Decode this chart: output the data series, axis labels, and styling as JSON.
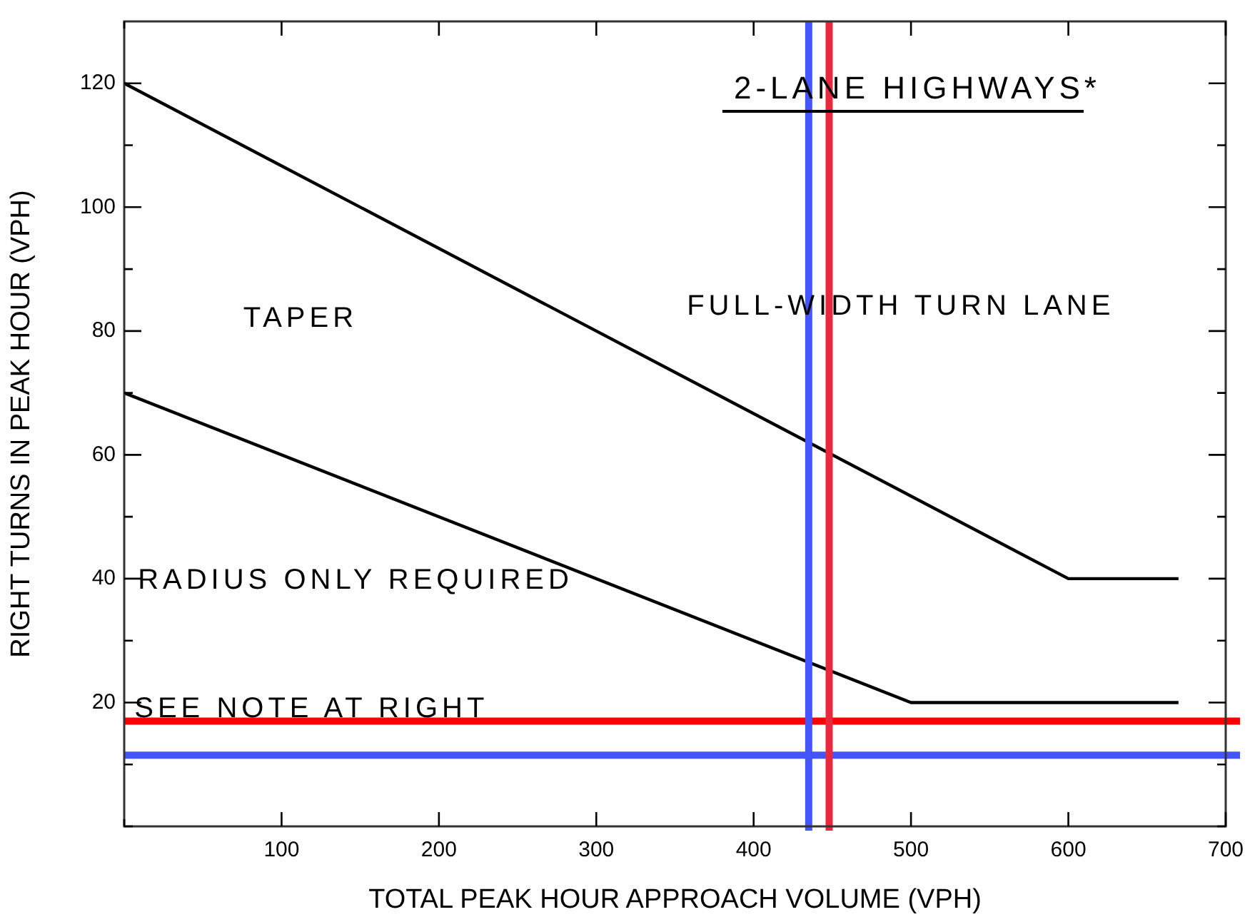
{
  "chart_data": {
    "type": "line",
    "title": "2-LANE HIGHWAYS*",
    "xlabel": "TOTAL PEAK HOUR APPROACH VOLUME (VPH)",
    "ylabel": "RIGHT TURNS IN PEAK HOUR (VPH)",
    "xlim": [
      0,
      700
    ],
    "ylim": [
      0,
      130
    ],
    "xticks": [
      {
        "value": 0,
        "label": null
      },
      100,
      200,
      300,
      400,
      500,
      600,
      700
    ],
    "yticks": [
      {
        "value": 0,
        "label": null
      },
      {
        "value": 10,
        "label": null
      },
      20,
      {
        "value": 30,
        "label": null
      },
      40,
      {
        "value": 50,
        "label": null
      },
      60,
      {
        "value": 70,
        "label": null
      },
      80,
      {
        "value": 90,
        "label": null
      },
      100,
      {
        "value": 110,
        "label": null
      },
      120
    ],
    "marker": "none",
    "legend": false,
    "series": [
      {
        "color": "#000000",
        "x": [
          0,
          600,
          670
        ],
        "values": [
          120,
          40,
          40
        ]
      },
      {
        "color": "#000000",
        "x": [
          0,
          500,
          670
        ],
        "values": [
          70,
          20,
          20
        ]
      }
    ],
    "ref_lines": [
      {
        "axis": "y",
        "value": 17,
        "color": "#ff0000"
      },
      {
        "axis": "y",
        "value": 11.5,
        "color": "#4455ff"
      },
      {
        "axis": "x",
        "value": 435,
        "color": "#4455ff"
      },
      {
        "axis": "x",
        "value": 448,
        "color": "#e8283c"
      }
    ],
    "annotations": [
      "TAPER",
      "FULL-WIDTH TURN LANE",
      "RADIUS ONLY REQUIRED",
      "SEE NOTE AT RIGHT"
    ]
  }
}
